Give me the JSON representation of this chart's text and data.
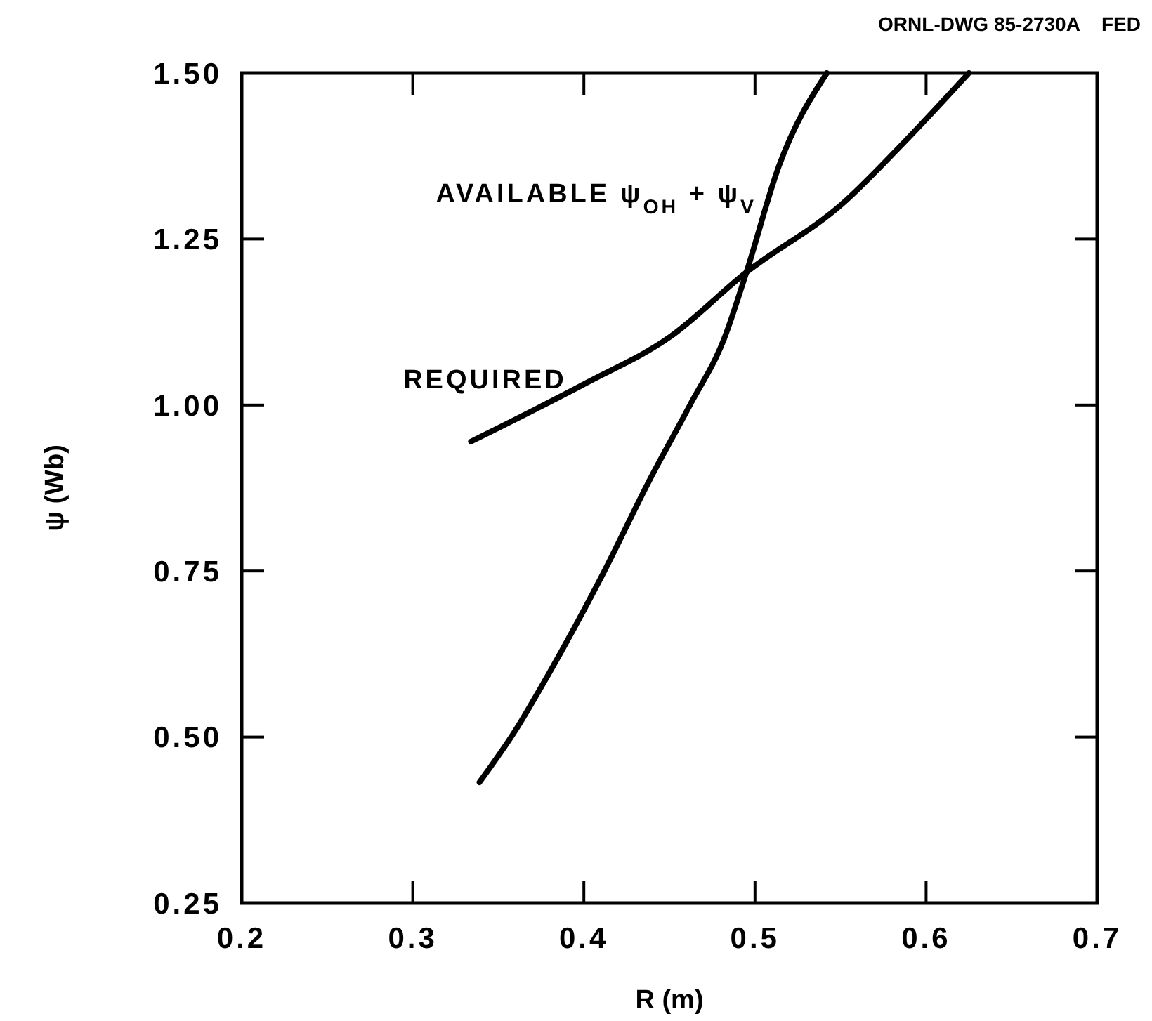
{
  "chart_data": {
    "type": "line",
    "xlabel": "R (m)",
    "ylabel": "ψ (Wb)",
    "xlim": [
      0.2,
      0.7
    ],
    "ylim": [
      0.25,
      1.5
    ],
    "xticks": [
      {
        "value": 0.2,
        "label": "0.2"
      },
      {
        "value": 0.3,
        "label": "0.3"
      },
      {
        "value": 0.4,
        "label": "0.4"
      },
      {
        "value": 0.5,
        "label": "0.5"
      },
      {
        "value": 0.6,
        "label": "0.6"
      },
      {
        "value": 0.7,
        "label": "0.7"
      }
    ],
    "yticks": [
      0.25,
      {
        "value": 0.5,
        "label": "0.50"
      },
      0.75,
      {
        "value": 1,
        "label": "1.00"
      },
      1.25,
      {
        "value": 1.5,
        "label": "1.50"
      }
    ],
    "grid": false,
    "legend": false,
    "marker": "none",
    "line_style": "solid",
    "annotations": [
      "ORNL-DWG 85-2730A    FED"
    ],
    "series": [
      {
        "name": "AVAILABLE ψ$_{OH}$ + ψ$_{V}$",
        "color": "#000000",
        "x": [
          0.339,
          0.36,
          0.379,
          0.41,
          0.439,
          0.462,
          0.482,
          0.495,
          0.514,
          0.542
        ],
        "values": [
          0.432,
          0.51,
          0.593,
          0.74,
          0.89,
          1.0,
          1.1,
          1.2,
          1.36,
          1.5
        ]
      },
      {
        "name": "REQUIRED",
        "color": "#000000",
        "x": [
          0.334,
          0.402,
          0.45,
          0.495,
          0.551,
          0.588,
          0.625
        ],
        "values": [
          0.945,
          1.034,
          1.102,
          1.2,
          1.303,
          1.398,
          1.5
        ]
      }
    ]
  }
}
